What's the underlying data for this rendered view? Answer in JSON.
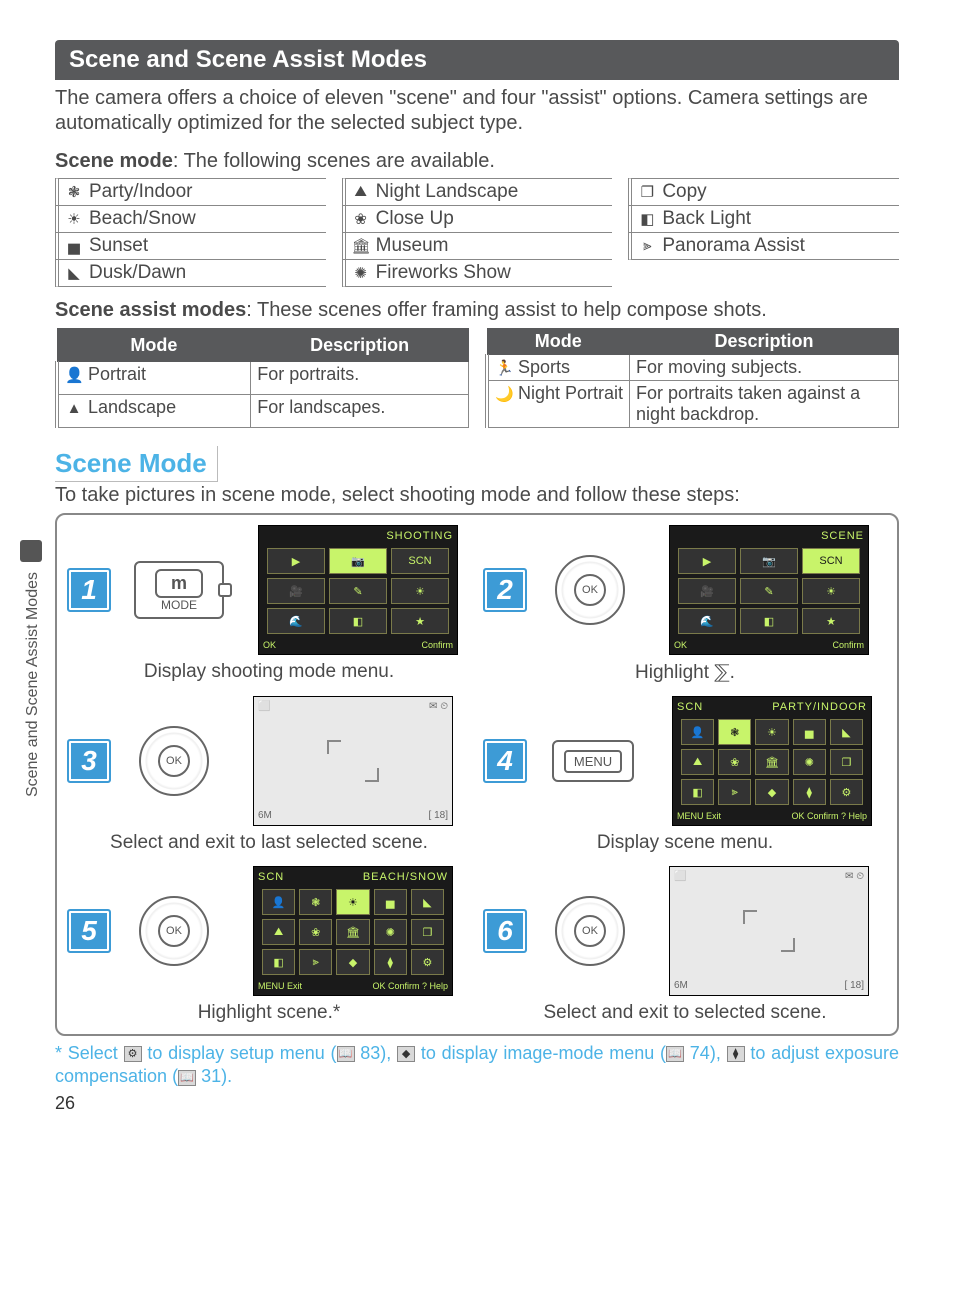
{
  "banner": "Scene and Scene Assist Modes",
  "intro": "The camera offers a choice of eleven \"scene\" and four \"assist\" options.  Camera settings are automatically optimized for the selected subject type.",
  "scene_mode_label": "Scene mode",
  "scene_mode_rest": ": The following scenes are available.",
  "scene_list": [
    {
      "icon": "❃",
      "label": "Party/Indoor"
    },
    {
      "icon": "⛰",
      "label": "Night Landscape"
    },
    {
      "icon": "❐",
      "label": "Copy"
    },
    {
      "icon": "☀",
      "label": "Beach/Snow"
    },
    {
      "icon": "❀",
      "label": "Close Up"
    },
    {
      "icon": "◧",
      "label": "Back Light"
    },
    {
      "icon": "▅",
      "label": "Sunset"
    },
    {
      "icon": "🏛",
      "label": "Museum"
    },
    {
      "icon": "⫸",
      "label": "Panorama Assist"
    },
    {
      "icon": "◣",
      "label": "Dusk/Dawn"
    },
    {
      "icon": "✺",
      "label": "Fireworks Show"
    }
  ],
  "assist_label": "Scene assist modes",
  "assist_rest": ": These scenes offer framing assist to help compose shots.",
  "assist_headers": {
    "mode": "Mode",
    "desc": "Description"
  },
  "assist_left": [
    {
      "icon": "👤",
      "mode": "Portrait",
      "desc": "For portraits."
    },
    {
      "icon": "▲",
      "mode": "Landscape",
      "desc": "For landscapes."
    }
  ],
  "assist_right": [
    {
      "icon": "🏃",
      "mode": "Sports",
      "desc": "For moving subjects."
    },
    {
      "icon": "🌙",
      "mode": "Night Portrait",
      "desc": "For portraits taken against a night backdrop."
    }
  ],
  "h2": "Scene Mode",
  "lead": "To take pictures in scene mode, select shooting mode and follow these steps:",
  "steps": [
    {
      "n": "1",
      "screen_title": "SHOOTING",
      "screen_style": "dark",
      "ctrl": "mode",
      "foot_l": "OK",
      "foot_r": "Confirm",
      "caption": "Display shooting mode menu."
    },
    {
      "n": "2",
      "screen_title": "SCENE",
      "screen_style": "dark",
      "ctrl": "ok",
      "foot_l": "OK",
      "foot_r": "Confirm",
      "caption": "Highlight ⅀."
    },
    {
      "n": "3",
      "screen_title": "",
      "screen_style": "light",
      "ctrl": "ok",
      "foot_l": "6M",
      "foot_r": "[  18]",
      "caption": "Select and exit to last selected scene."
    },
    {
      "n": "4",
      "screen_title": "PARTY/INDOOR",
      "screen_style": "dark-grid",
      "ctrl": "menu",
      "foot_l": "MENU Exit",
      "foot_r": "OK Confirm ? Help",
      "caption": "Display scene menu."
    },
    {
      "n": "5",
      "screen_title": "BEACH/SNOW",
      "screen_style": "dark-grid",
      "ctrl": "ok",
      "foot_l": "MENU Exit",
      "foot_r": "OK Confirm ? Help",
      "caption": "Highlight scene.*"
    },
    {
      "n": "6",
      "screen_title": "",
      "screen_style": "light",
      "ctrl": "ok",
      "foot_l": "6M",
      "foot_r": "[  18]",
      "caption": "Select and exit to selected scene."
    }
  ],
  "footnote_pre": "* Select ",
  "footnote_1": " to display setup menu (",
  "footnote_p1": " 83), ",
  "footnote_2": " to display image-mode menu (",
  "footnote_p2": " 74), ",
  "footnote_3": " to adjust exposure compensation (",
  "footnote_p3": " 31).",
  "page_number": "26",
  "side_label": "Scene and Scene Assist Modes",
  "ctrl_labels": {
    "mode_m": "m",
    "mode_txt": "MODE",
    "ok": "OK",
    "menu": "MENU"
  },
  "colors": {
    "accent": "#4cb3e6",
    "step_bg": "#3d9bd6",
    "banner_bg": "#58595b",
    "screen_green": "#c8f46a",
    "body_text": "#4a4a4a"
  }
}
